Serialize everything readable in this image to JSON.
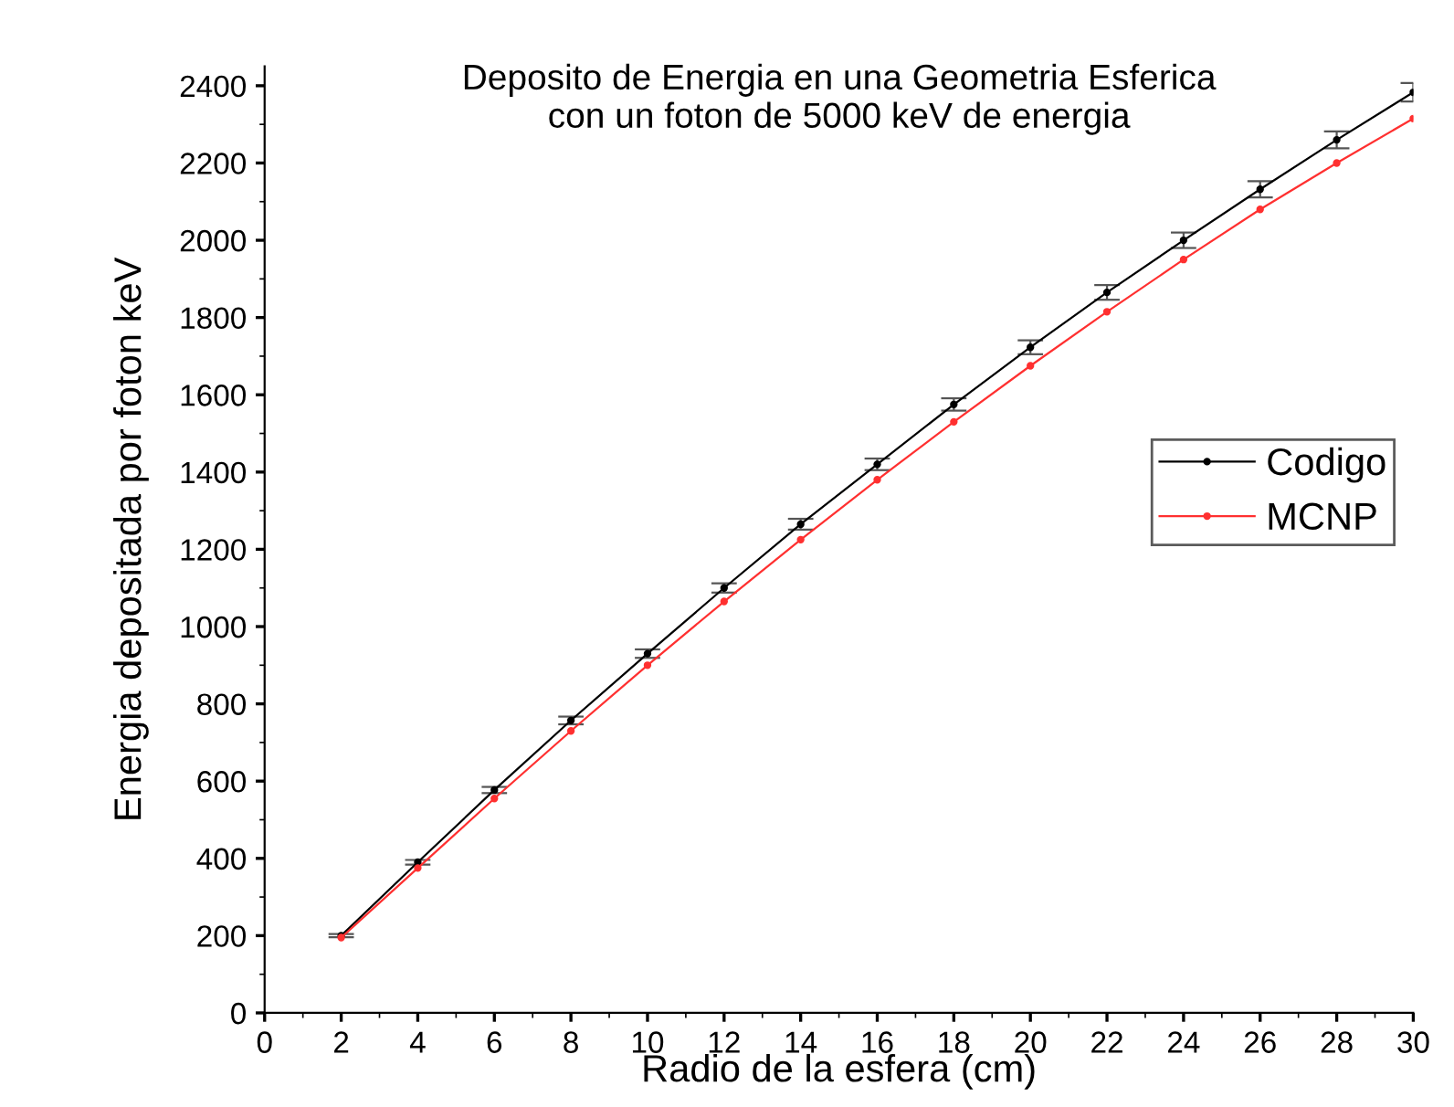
{
  "chart_data": {
    "type": "line",
    "title": "Deposito de Energia en una Geometria Esferica\ncon un foton de 5000 keV de energia",
    "xlabel": "Radio de la esfera (cm)",
    "ylabel": "Energia depositada por foton keV",
    "x": [
      2,
      4,
      6,
      8,
      10,
      12,
      14,
      16,
      18,
      20,
      22,
      24,
      26,
      28,
      30
    ],
    "series": [
      {
        "name": "Codigo",
        "color": "#000000",
        "values": [
          200,
          390,
          577,
          757,
          930,
          1100,
          1265,
          1420,
          1575,
          1723,
          1865,
          2000,
          2132,
          2260,
          2383
        ],
        "errors": [
          4,
          6,
          8,
          10,
          11,
          12,
          14,
          15,
          16,
          18,
          19,
          20,
          21,
          22,
          24
        ]
      },
      {
        "name": "MCNP",
        "color": "#ff3030",
        "values": [
          195,
          375,
          555,
          730,
          900,
          1065,
          1225,
          1380,
          1530,
          1675,
          1815,
          1950,
          2080,
          2200,
          2315
        ]
      }
    ],
    "xlim": [
      0,
      30
    ],
    "xticks": [
      0,
      2,
      4,
      6,
      8,
      10,
      12,
      14,
      16,
      18,
      20,
      22,
      24,
      26,
      28,
      30
    ],
    "ylim": [
      0,
      2450
    ],
    "yticks": [
      0,
      200,
      400,
      600,
      800,
      1000,
      1200,
      1400,
      1600,
      1800,
      2000,
      2200,
      2400
    ],
    "legend": "right",
    "marker": "circle",
    "grid": false
  }
}
